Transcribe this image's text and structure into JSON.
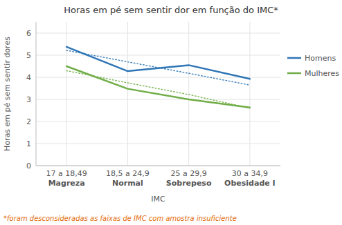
{
  "chart_data": {
    "type": "line",
    "title": "Horas em pé sem sentir dor em função do IMC*",
    "x_label": "IMC",
    "y_label": "Horas em pé sem sentir dores",
    "categories": [
      "17 a 18,49\nMagreza",
      "18,5 a 24,9\nNormal",
      "25 a 29,9\nSobrepeso",
      "30 a 34,9\nObesidade I"
    ],
    "series": [
      {
        "color": "#2E75B6",
        "line_style": "dotted",
        "values": [
          5.22,
          4.7,
          4.18,
          3.65
        ]
      },
      {
        "color": "#70AD47",
        "line_style": "dotted",
        "values": [
          4.3,
          3.75,
          3.22,
          2.6
        ]
      },
      {
        "name": "Homens",
        "color": "#2E75B6",
        "line_style": "solid",
        "values": [
          5.38,
          4.28,
          4.55,
          3.93
        ]
      },
      {
        "name": "Mulheres",
        "color": "#70AD47",
        "line_style": "solid",
        "values": [
          4.5,
          3.48,
          3.0,
          2.63
        ]
      }
    ],
    "ylim": [
      0,
      6.5
    ],
    "yticks": [
      0,
      1,
      2,
      3,
      4,
      5,
      6
    ],
    "grid": true,
    "legend": "right",
    "annotations": [
      {
        "text": "*foram desconsideradas as faixas de IMC com amostra insuficiente",
        "color": "#E36C0A"
      }
    ]
  }
}
